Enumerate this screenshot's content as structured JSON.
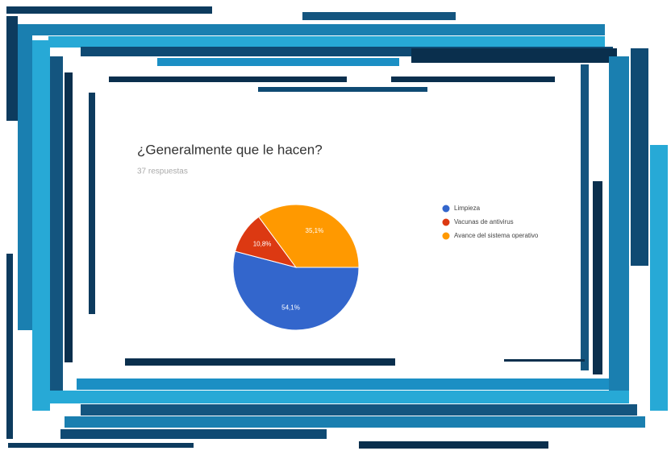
{
  "chart_data": {
    "type": "pie",
    "title": "¿Generalmente que le hacen?",
    "subtitle": "37 respuestas",
    "categories": [
      "Limpieza",
      "Vacunas de antivirus",
      "Avance del sistema operativo"
    ],
    "values": [
      54.1,
      10.8,
      35.1
    ],
    "value_labels": [
      "54,1%",
      "10,8%",
      "35,1%"
    ],
    "colors": [
      "#3366cc",
      "#dc3912",
      "#ff9900"
    ]
  }
}
